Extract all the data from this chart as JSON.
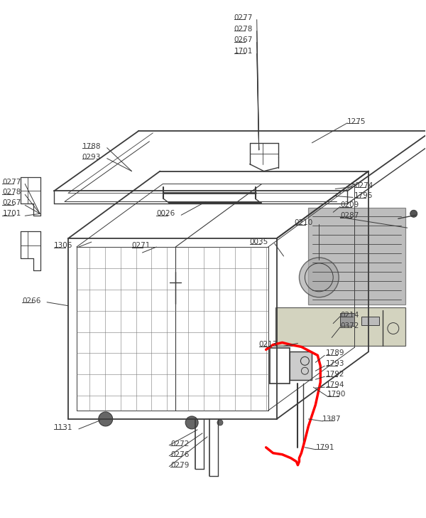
{
  "bg_color": "#ffffff",
  "line_color": "#3a3a3a",
  "text_color": "#3a3a3a",
  "red_color": "#ff0000",
  "fs": 7.5,
  "fig_w": 6.0,
  "fig_h": 7.28
}
